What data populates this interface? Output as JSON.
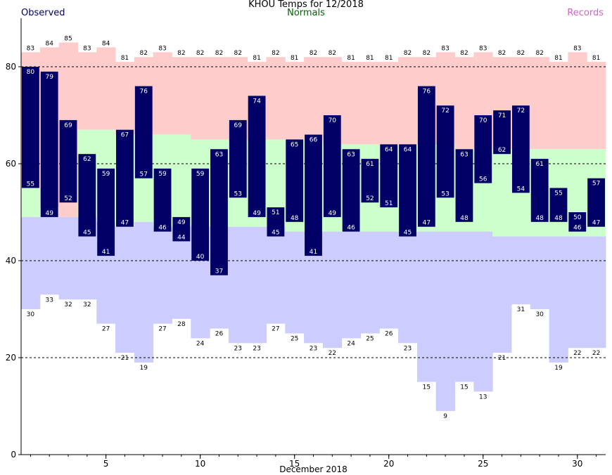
{
  "header": {
    "title": "KHOU Temps for 12/2018",
    "observed_label": "Observed",
    "normals_label": "Normals",
    "records_label": "Records"
  },
  "colors": {
    "observed": "#000066",
    "record_band": "#ffcccc",
    "normal_band": "#ccffcc",
    "low_band": "#ccccff",
    "normals_text": "#006600",
    "records_text": "#cc66cc"
  },
  "chart_data": {
    "type": "bar",
    "title": "KHOU Temps for 12/2018",
    "xlabel": "December 2018",
    "ylabel": "",
    "x_ticks": [
      5,
      10,
      15,
      20,
      25,
      30
    ],
    "y_ticks": [
      0,
      20,
      40,
      60,
      80
    ],
    "xlim": [
      1,
      31
    ],
    "ylim": [
      0,
      90
    ],
    "grid": "dashed horizontal at 20, 40, 60, 80",
    "days": [
      1,
      2,
      3,
      4,
      5,
      6,
      7,
      8,
      9,
      10,
      11,
      12,
      13,
      14,
      15,
      16,
      17,
      18,
      19,
      20,
      21,
      22,
      23,
      24,
      25,
      26,
      27,
      28,
      29,
      30,
      31
    ],
    "series": [
      {
        "name": "Observed",
        "high": [
          80,
          79,
          69,
          62,
          59,
          67,
          76,
          59,
          49,
          59,
          63,
          69,
          74,
          51,
          65,
          66,
          70,
          63,
          61,
          64,
          64,
          76,
          72,
          63,
          70,
          71,
          72,
          61,
          55,
          50,
          57
        ],
        "low": [
          55,
          49,
          52,
          45,
          41,
          47,
          57,
          46,
          44,
          40,
          37,
          53,
          49,
          45,
          48,
          41,
          49,
          46,
          52,
          51,
          45,
          47,
          53,
          48,
          56,
          62,
          54,
          48,
          48,
          46,
          47
        ]
      },
      {
        "name": "Records",
        "high": [
          83,
          84,
          85,
          83,
          84,
          81,
          82,
          83,
          82,
          82,
          82,
          82,
          81,
          82,
          81,
          82,
          82,
          81,
          81,
          81,
          82,
          82,
          83,
          82,
          83,
          82,
          82,
          82,
          81,
          83,
          81
        ],
        "low": [
          30,
          33,
          32,
          32,
          27,
          21,
          19,
          27,
          28,
          24,
          26,
          23,
          23,
          27,
          25,
          23,
          22,
          24,
          25,
          26,
          23,
          15,
          9,
          15,
          13,
          21,
          31,
          30,
          19,
          22,
          22
        ]
      },
      {
        "name": "Normals",
        "high": [
          55,
          51,
          49,
          67,
          67,
          66,
          66,
          66,
          66,
          65,
          65,
          65,
          65,
          65,
          65,
          65,
          64,
          64,
          64,
          64,
          64,
          64,
          64,
          63,
          63,
          63,
          63,
          63,
          63,
          63,
          63
        ],
        "low": [
          49,
          49,
          49,
          49,
          48,
          47,
          48,
          47,
          47,
          47,
          47,
          47,
          47,
          47,
          46,
          46,
          46,
          46,
          46,
          46,
          46,
          46,
          46,
          46,
          46,
          45,
          45,
          45,
          45,
          45,
          45
        ]
      }
    ]
  }
}
